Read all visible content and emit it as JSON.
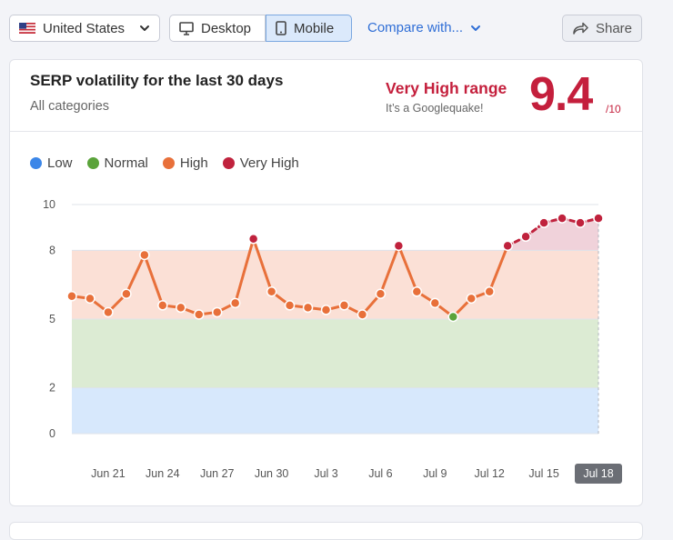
{
  "toolbar": {
    "country": "United States",
    "device_desktop": "Desktop",
    "device_mobile": "Mobile",
    "compare": "Compare with...",
    "share": "Share"
  },
  "icons": {
    "flag": "us-flag-icon",
    "country_chevron": "chevron-down-icon",
    "desktop": "desktop-icon",
    "mobile": "mobile-icon",
    "compare_chevron": "chevron-down-icon",
    "share": "share-arrow-icon"
  },
  "card": {
    "title": "SERP volatility for the last 30 days",
    "subtitle": "All categories",
    "range_label": "Very High range",
    "range_desc": "It’s a Googlequake!",
    "score": "9.4",
    "score_max": "/10"
  },
  "colors": {
    "accent_red": "#c41f3c",
    "low": "#3b86e8",
    "normal": "#5aa33a",
    "high": "#e8703a",
    "very_high": "#c0223d",
    "band_low": "#d7e8fc",
    "band_normal": "#dcebd3",
    "band_high": "#fbe0d6",
    "band_very_high": "#f0d2da"
  },
  "chart_data": {
    "type": "line",
    "title": "",
    "xlabel": "",
    "ylabel": "",
    "ylim": [
      0,
      10
    ],
    "y_ticks": [
      "0",
      "2",
      "5",
      "8",
      "10"
    ],
    "legend": [
      {
        "label": "Low",
        "color": "#3b86e8"
      },
      {
        "label": "Normal",
        "color": "#5aa33a"
      },
      {
        "label": "High",
        "color": "#e8703a"
      },
      {
        "label": "Very High",
        "color": "#c0223d"
      }
    ],
    "legend_position": "top-left",
    "bands": [
      {
        "name": "Low",
        "from": 0,
        "to": 2
      },
      {
        "name": "Normal",
        "from": 2,
        "to": 5
      },
      {
        "name": "High",
        "from": 5,
        "to": 8
      },
      {
        "name": "Very High",
        "from": 8,
        "to": 10
      }
    ],
    "x_tick_labels": [
      "Jun 21",
      "Jun 24",
      "Jun 27",
      "Jun 30",
      "Jul 3",
      "Jul 6",
      "Jul 9",
      "Jul 12",
      "Jul 15",
      "Jul 18"
    ],
    "x": [
      "Jun 19",
      "Jun 20",
      "Jun 21",
      "Jun 22",
      "Jun 23",
      "Jun 24",
      "Jun 25",
      "Jun 26",
      "Jun 27",
      "Jun 28",
      "Jun 29",
      "Jun 30",
      "Jul 1",
      "Jul 2",
      "Jul 3",
      "Jul 4",
      "Jul 5",
      "Jul 6",
      "Jul 7",
      "Jul 8",
      "Jul 9",
      "Jul 10",
      "Jul 11",
      "Jul 12",
      "Jul 13",
      "Jul 14",
      "Jul 15",
      "Jul 16",
      "Jul 17",
      "Jul 18"
    ],
    "series": [
      {
        "values": [
          6.0,
          5.9,
          5.3,
          6.1,
          7.8,
          5.6,
          5.5,
          5.2,
          5.3,
          5.7,
          8.5,
          6.2,
          5.6,
          5.5,
          5.4,
          5.6,
          5.2,
          6.1,
          8.2,
          6.2,
          5.7,
          5.1,
          5.9,
          6.2,
          8.2,
          8.6,
          9.2,
          9.4,
          9.2,
          9.4
        ]
      }
    ],
    "selected_x": "Jul 18",
    "grid": true
  }
}
